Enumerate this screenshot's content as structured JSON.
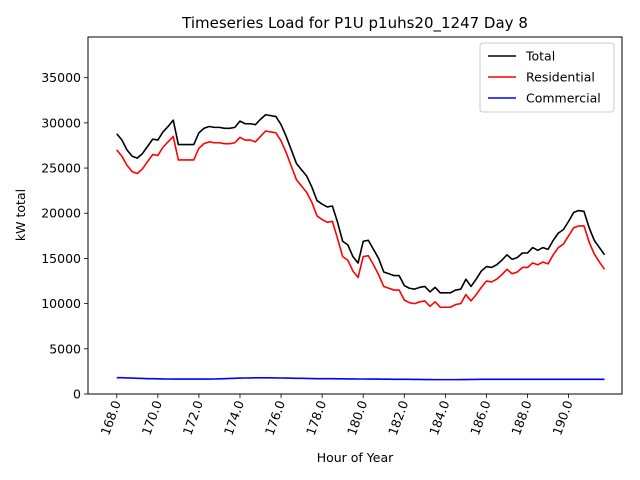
{
  "chart_data": {
    "type": "line",
    "title": "Timeseries Load for P1U p1uhs20_1247  Day 8",
    "xlabel": "Hour of Year",
    "ylabel": "kW total",
    "xlim": [
      166.6,
      192.6
    ],
    "ylim": [
      0,
      39500
    ],
    "xticks": [
      168,
      170,
      172,
      174,
      176,
      178,
      180,
      182,
      184,
      186,
      188,
      190
    ],
    "xtick_labels": [
      "168.0",
      "170.0",
      "172.0",
      "174.0",
      "176.0",
      "178.0",
      "180.0",
      "182.0",
      "184.0",
      "186.0",
      "188.0",
      "190.0"
    ],
    "yticks": [
      0,
      5000,
      10000,
      15000,
      20000,
      25000,
      30000,
      35000
    ],
    "ytick_labels": [
      "0",
      "5000",
      "10000",
      "15000",
      "20000",
      "25000",
      "30000",
      "35000"
    ],
    "grid": false,
    "legend_position": "top-right",
    "x": [
      168.0,
      168.25,
      168.5,
      168.75,
      169.0,
      169.25,
      169.5,
      169.75,
      170.0,
      170.25,
      170.5,
      170.75,
      171.0,
      171.25,
      171.5,
      171.75,
      172.0,
      172.25,
      172.5,
      172.75,
      173.0,
      173.25,
      173.5,
      173.75,
      174.0,
      174.25,
      174.5,
      174.75,
      175.0,
      175.25,
      175.5,
      175.75,
      176.0,
      176.25,
      176.5,
      176.75,
      177.0,
      177.25,
      177.5,
      177.75,
      178.0,
      178.25,
      178.5,
      178.75,
      179.0,
      179.25,
      179.5,
      179.75,
      180.0,
      180.25,
      180.5,
      180.75,
      181.0,
      181.25,
      181.5,
      181.75,
      182.0,
      182.25,
      182.5,
      182.75,
      183.0,
      183.25,
      183.5,
      183.75,
      184.0,
      184.25,
      184.5,
      184.75,
      185.0,
      185.25,
      185.5,
      185.75,
      186.0,
      186.25,
      186.5,
      186.75,
      187.0,
      187.25,
      187.5,
      187.75,
      188.0,
      188.25,
      188.5,
      188.75,
      189.0,
      189.25,
      189.5,
      189.75,
      190.0,
      190.25,
      190.5,
      190.75,
      191.0,
      191.25,
      191.5,
      191.75
    ],
    "series": [
      {
        "name": "Total",
        "color": "#000000",
        "values": [
          28800,
          28100,
          27000,
          26300,
          26100,
          26600,
          27400,
          28200,
          28100,
          29000,
          29600,
          30300,
          27600,
          27600,
          27600,
          27600,
          28900,
          29400,
          29600,
          29500,
          29500,
          29400,
          29400,
          29500,
          30200,
          29900,
          29900,
          29800,
          30400,
          30900,
          30800,
          30700,
          29800,
          28500,
          27000,
          25500,
          24800,
          24100,
          22900,
          21400,
          21000,
          20700,
          20800,
          19000,
          16900,
          16500,
          15200,
          14500,
          16900,
          17000,
          16000,
          15000,
          13500,
          13300,
          13100,
          13100,
          12000,
          11700,
          11600,
          11800,
          11900,
          11300,
          11800,
          11200,
          11200,
          11200,
          11500,
          11600,
          12700,
          11900,
          12700,
          13600,
          14100,
          14000,
          14300,
          14800,
          15400,
          14900,
          15100,
          15600,
          15600,
          16200,
          15900,
          16200,
          16000,
          17000,
          17800,
          18200,
          19100,
          20100,
          20300,
          20200,
          18400,
          17000,
          16200,
          15400
        ]
      },
      {
        "name": "Residential",
        "color": "#ff0000",
        "values": [
          27000,
          26300,
          25300,
          24600,
          24400,
          24900,
          25700,
          26500,
          26400,
          27300,
          27900,
          28500,
          25900,
          25900,
          25900,
          25900,
          27200,
          27700,
          27900,
          27800,
          27800,
          27700,
          27700,
          27800,
          28400,
          28100,
          28100,
          27900,
          28500,
          29100,
          29000,
          28900,
          28000,
          26700,
          25200,
          23700,
          23000,
          22300,
          21200,
          19700,
          19300,
          19000,
          19100,
          17200,
          15200,
          14800,
          13600,
          12900,
          15200,
          15300,
          14300,
          13200,
          11900,
          11700,
          11500,
          11500,
          10400,
          10100,
          10000,
          10200,
          10300,
          9700,
          10200,
          9600,
          9600,
          9600,
          9900,
          10000,
          11000,
          10300,
          11000,
          11800,
          12500,
          12400,
          12700,
          13200,
          13800,
          13300,
          13500,
          14000,
          14000,
          14500,
          14300,
          14600,
          14400,
          15400,
          16200,
          16600,
          17500,
          18400,
          18600,
          18600,
          16800,
          15500,
          14600,
          13800
        ]
      },
      {
        "name": "Commercial",
        "color": "#0000ff",
        "values": [
          1800,
          1800,
          1780,
          1760,
          1740,
          1720,
          1700,
          1690,
          1680,
          1670,
          1660,
          1650,
          1650,
          1650,
          1650,
          1650,
          1650,
          1650,
          1650,
          1660,
          1680,
          1700,
          1720,
          1740,
          1760,
          1770,
          1780,
          1790,
          1790,
          1790,
          1790,
          1780,
          1770,
          1760,
          1750,
          1740,
          1730,
          1720,
          1710,
          1700,
          1700,
          1690,
          1690,
          1680,
          1680,
          1670,
          1670,
          1660,
          1660,
          1650,
          1650,
          1650,
          1640,
          1640,
          1630,
          1630,
          1620,
          1620,
          1610,
          1610,
          1600,
          1600,
          1590,
          1590,
          1590,
          1590,
          1590,
          1600,
          1600,
          1610,
          1610,
          1620,
          1620,
          1620,
          1620,
          1630,
          1630,
          1630,
          1630,
          1630,
          1630,
          1630,
          1620,
          1620,
          1620,
          1620,
          1620,
          1620,
          1620,
          1620,
          1620,
          1620,
          1620,
          1630,
          1630,
          1630
        ]
      }
    ]
  }
}
